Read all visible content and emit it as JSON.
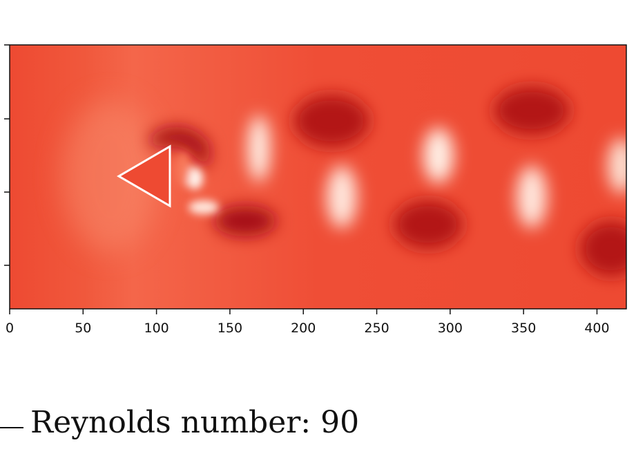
{
  "chart_data": {
    "type": "heatmap",
    "title": "",
    "xlabel": "",
    "ylabel": "",
    "colormap": "Reds",
    "xlim": [
      0,
      420
    ],
    "x_ticks": [
      0,
      50,
      100,
      150,
      200,
      250,
      300,
      350,
      400
    ],
    "y_ticks": [
      "",
      "",
      "",
      ""
    ],
    "obstacle": {
      "shape": "triangle",
      "x_range": [
        74,
        109
      ]
    },
    "grid": false
  },
  "caption": {
    "text": "Reynolds number: 90"
  },
  "colors": {
    "background": "#ee4a32",
    "dark": "#a50f15",
    "light": "#fff5f0",
    "obstacle_edge": "#ffffff"
  }
}
